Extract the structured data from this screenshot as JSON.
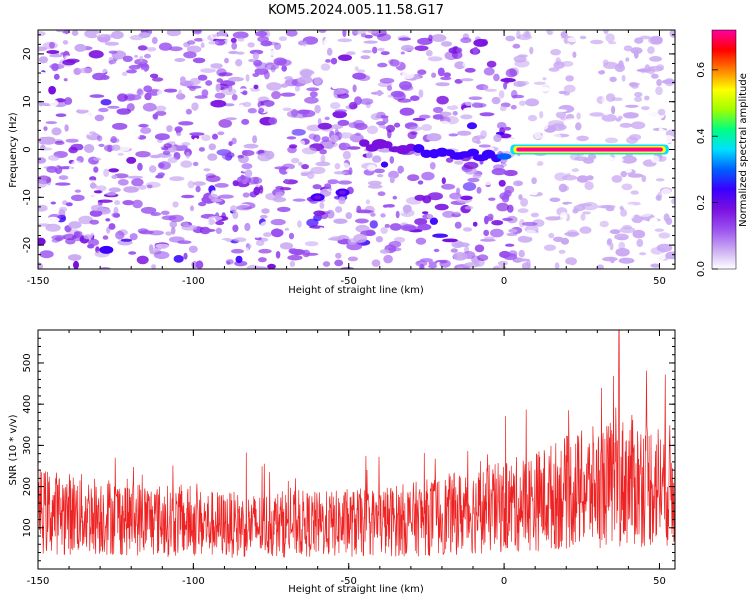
{
  "title": "KOM5.2024.005.11.58.G17",
  "colors": {
    "snr_line": "#ee2222",
    "frame": "#000000",
    "colormap": [
      "#ffffff",
      "#c9a8f2",
      "#9a50f0",
      "#7a10e0",
      "#3a00ff",
      "#0060ff",
      "#00e0ff",
      "#00ff80",
      "#a0ff00",
      "#ffff00",
      "#ff8000",
      "#ff0000",
      "#ff00a0"
    ]
  },
  "chart_data": [
    {
      "type": "heatmap",
      "xlabel": "Height of straight line (km)",
      "ylabel": "Frequency (Hz)",
      "xlim": [
        -150,
        55
      ],
      "ylim": [
        -25,
        25
      ],
      "x_ticks": [
        "-150",
        "-100",
        "-50",
        "0",
        "50"
      ],
      "x_tick_values": [
        -150,
        -100,
        -50,
        0,
        50
      ],
      "y_ticks": [
        "-20",
        "-10",
        "0",
        "10",
        "20"
      ],
      "y_tick_values": [
        -20,
        -10,
        0,
        10,
        20
      ],
      "colorbar": {
        "label": "Normalized spectral amplitude",
        "range": [
          0.0,
          0.72
        ],
        "ticks": [
          "0.0",
          "0.2",
          "0.4",
          "0.6"
        ],
        "tick_values": [
          0.0,
          0.2,
          0.4,
          0.6
        ]
      },
      "features": [
        {
          "x": 2,
          "x_end": 53,
          "freq": 0,
          "amp": 0.7
        },
        {
          "x": -45,
          "x_end": 0,
          "freq_start": 1,
          "freq_end": -2,
          "amp": 0.25
        },
        {
          "x": -128,
          "freq": -21,
          "amp": 0.22
        },
        {
          "x": -60,
          "freq": -10,
          "amp": 0.2
        },
        {
          "x": -52,
          "freq": -9,
          "amp": 0.18
        }
      ]
    },
    {
      "type": "line",
      "xlabel": "Height of straight line (km)",
      "ylabel": "SNR (10 * v/v)",
      "xlim": [
        -150,
        55
      ],
      "ylim": [
        0,
        580
      ],
      "x_ticks": [
        "-150",
        "-100",
        "-50",
        "0",
        "50"
      ],
      "x_tick_values": [
        -150,
        -100,
        -50,
        0,
        50
      ],
      "y_ticks": [
        "100",
        "200",
        "300",
        "400",
        "500"
      ],
      "y_tick_values": [
        100,
        200,
        300,
        400,
        500
      ],
      "series": [
        {
          "x": [
            -150,
            -140,
            -130,
            -120,
            -110,
            -100,
            -90,
            -80,
            -70,
            -60,
            -50,
            -40,
            -30,
            -20,
            -10,
            0,
            10,
            20,
            30,
            40,
            50,
            55
          ],
          "values": [
            140,
            135,
            130,
            125,
            118,
            112,
            108,
            105,
            110,
            108,
            110,
            115,
            120,
            130,
            140,
            150,
            165,
            185,
            200,
            215,
            205,
            200
          ],
          "noise_range": [
            60,
            290
          ],
          "peak": {
            "x": 37,
            "value": 580
          }
        }
      ]
    }
  ]
}
